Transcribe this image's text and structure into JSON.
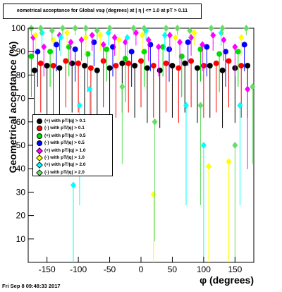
{
  "chart_data": {
    "type": "scatter",
    "title": "eometrical acceptance for Global vsφ (degrees) at | η | <= 1.0 at pT > 0.11",
    "xlabel": "φ (degrees)",
    "ylabel": "Geometrical acceptance (%)",
    "xlim": [
      -180,
      180
    ],
    "ylim": [
      0,
      100
    ],
    "x_ticks": [
      -150,
      -100,
      -50,
      0,
      50,
      100,
      150
    ],
    "y_ticks": [
      10,
      20,
      30,
      40,
      50,
      60,
      70,
      80,
      90,
      100
    ],
    "grid": false,
    "legend_position": "middle-left",
    "series": [
      {
        "name": "(+) with pT/|q| > 0.1",
        "color": "#000000",
        "marker": "circle",
        "x": [
          -170,
          -150,
          -130,
          -110,
          -90,
          -70,
          -50,
          -30,
          -10,
          10,
          30,
          50,
          70,
          90,
          110,
          130,
          150,
          170
        ],
        "y": [
          82,
          84,
          83,
          85,
          84,
          82,
          83,
          85,
          84,
          83,
          82,
          84,
          85,
          83,
          84,
          82,
          83,
          84
        ]
      },
      {
        "name": "(-) with pT/|q| > 0.1",
        "color": "#ff0000",
        "marker": "circle",
        "x": [
          -160,
          -140,
          -120,
          -100,
          -80,
          -60,
          -40,
          -20,
          0,
          20,
          40,
          60,
          80,
          100,
          120,
          140,
          160
        ],
        "y": [
          85,
          84,
          86,
          85,
          83,
          86,
          84,
          85,
          86,
          84,
          85,
          83,
          86,
          84,
          85,
          86,
          84
        ]
      },
      {
        "name": "(+) with pT/|q| > 0.5",
        "color": "#00dd00",
        "marker": "circle",
        "x": [
          -175,
          -145,
          -115,
          -85,
          -55,
          -25,
          5,
          35,
          65,
          95,
          125,
          155
        ],
        "y": [
          88,
          90,
          92,
          89,
          91,
          87,
          90,
          92,
          88,
          91,
          89,
          90
        ]
      },
      {
        "name": "(-) with pT/|q| > 0.5",
        "color": "#0000ff",
        "marker": "circle",
        "x": [
          -165,
          -135,
          -105,
          -75,
          -45,
          -15,
          15,
          45,
          75,
          105,
          135,
          165
        ],
        "y": [
          90,
          93,
          91,
          94,
          92,
          90,
          93,
          91,
          94,
          92,
          90,
          93
        ]
      },
      {
        "name": "(+) with pT/|q| > 1.0",
        "color": "#ff00ff",
        "marker": "diamond",
        "x": [
          -172,
          -155,
          -130,
          -112,
          -95,
          -78,
          -60,
          -42,
          -25,
          -8,
          12,
          28,
          46,
          62,
          80,
          98,
          115,
          132,
          150,
          170
        ],
        "y": [
          96,
          92,
          97,
          94,
          95,
          97,
          93,
          96,
          94,
          98,
          95,
          92,
          97,
          94,
          96,
          93,
          97,
          95,
          92,
          74
        ]
      },
      {
        "name": "(-) with pT/|q| > 1.0",
        "color": "#ffff00",
        "marker": "diamond",
        "x": [
          -168,
          -140,
          -118,
          -88,
          -65,
          -35,
          2,
          20,
          55,
          85,
          108,
          140,
          160
        ],
        "y": [
          97,
          95,
          98,
          96,
          97,
          95,
          97,
          29,
          96,
          98,
          41,
          43,
          96
        ]
      },
      {
        "name": "(+) with pT/|q| > 2.0",
        "color": "#00ffff",
        "marker": "diamond",
        "x": [
          -158,
          -128,
          -108,
          -98,
          -82,
          -52,
          -22,
          8,
          38,
          72,
          100,
          128,
          158
        ],
        "y": [
          98,
          96,
          33,
          67,
          74,
          98,
          96,
          99,
          97,
          67,
          50,
          98,
          67
        ]
      },
      {
        "name": "(-) with pT/|q| > 2.0",
        "color": "#66dd66",
        "marker": "diamond",
        "x": [
          -175,
          -160,
          -142,
          -125,
          -105,
          -88,
          -70,
          -50,
          -30,
          -12,
          5,
          22,
          40,
          58,
          78,
          95,
          112,
          130,
          150,
          168,
          178
        ],
        "y": [
          100,
          100,
          99,
          100,
          100,
          100,
          99,
          100,
          75,
          100,
          100,
          60,
          100,
          100,
          99,
          67,
          100,
          100,
          50,
          100,
          75
        ]
      }
    ]
  },
  "footer": {
    "date": "Fri Sep  8 09:48:33 2017"
  }
}
